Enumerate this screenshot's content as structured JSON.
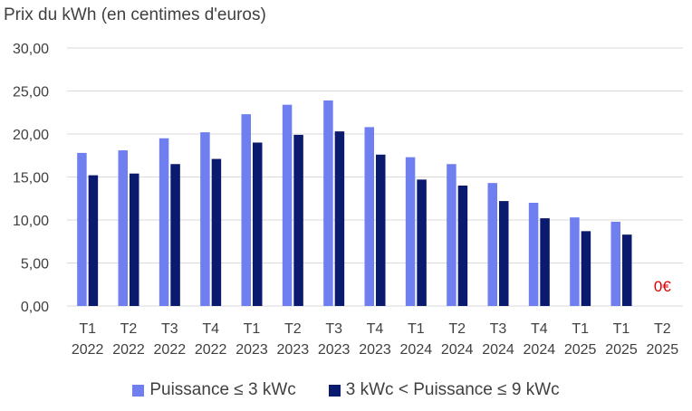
{
  "chart_data": {
    "type": "bar",
    "title": "Prix du kWh (en centimes d'euros)",
    "categories": [
      [
        "T1",
        "2022"
      ],
      [
        "T2",
        "2022"
      ],
      [
        "T3",
        "2022"
      ],
      [
        "T4",
        "2022"
      ],
      [
        "T1",
        "2023"
      ],
      [
        "T2",
        "2023"
      ],
      [
        "T3",
        "2023"
      ],
      [
        "T4",
        "2023"
      ],
      [
        "T1",
        "2024"
      ],
      [
        "T2",
        "2024"
      ],
      [
        "T3",
        "2024"
      ],
      [
        "T4",
        "2024"
      ],
      [
        "T1",
        "2025"
      ],
      [
        "T1",
        "2025"
      ],
      [
        "T2",
        "2025"
      ]
    ],
    "series": [
      {
        "name": "Puissance ≤ 3 kWc",
        "color": "#6f7ff0",
        "values": [
          17.8,
          18.1,
          19.5,
          20.2,
          22.3,
          23.4,
          23.9,
          20.8,
          17.3,
          16.5,
          14.3,
          12.0,
          10.3,
          9.8,
          0
        ]
      },
      {
        "name": "3  kWc < Puissance ≤ 9 kWc",
        "color": "#0a1a6e",
        "values": [
          15.2,
          15.4,
          16.5,
          17.1,
          19.0,
          19.9,
          20.3,
          17.6,
          14.7,
          14.0,
          12.2,
          10.2,
          8.7,
          8.3,
          0
        ]
      }
    ],
    "yticks": [
      "0,00",
      "5,00",
      "10,00",
      "15,00",
      "20,00",
      "25,00",
      "30,00"
    ],
    "ylim": [
      0,
      30
    ],
    "grid": true,
    "legend": "bottom",
    "annotations": [
      {
        "text": "0€",
        "category_index": 14,
        "color": "#e00000"
      }
    ]
  }
}
